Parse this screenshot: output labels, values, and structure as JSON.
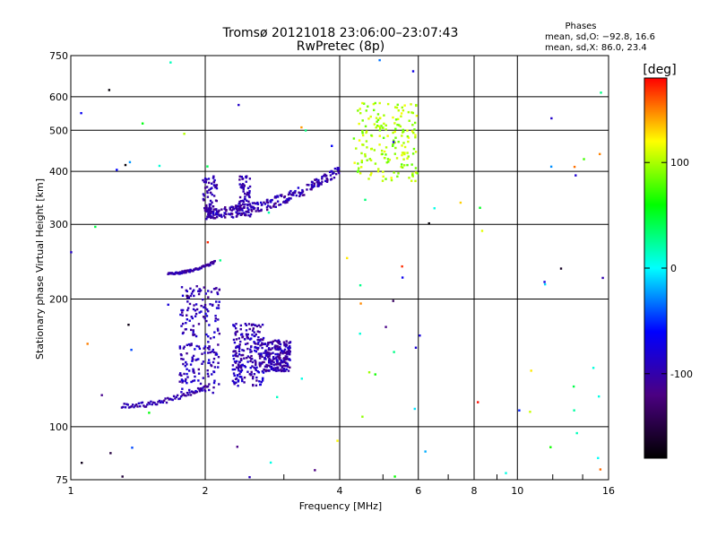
{
  "chart_data": {
    "type": "scatter",
    "title": "Tromsø 20121018 23:06:00–23:07:43",
    "subtitle": "RwPretec (8p)",
    "xlabel": "Frequency [MHz]",
    "ylabel": "Stationary phase Virtual Height [km]",
    "x_scale": "log",
    "y_scale": "log",
    "xlim": [
      1,
      16
    ],
    "ylim": [
      75,
      750
    ],
    "x_ticks": [
      1,
      2,
      4,
      6,
      8,
      10,
      16
    ],
    "y_ticks": [
      75,
      100,
      200,
      300,
      400,
      500,
      600,
      750
    ],
    "grid": true,
    "phases_box": {
      "title": "Phases",
      "line_o": "mean, sd,O: −92.8, 16.6",
      "line_x": "mean, sd,X:  86.0, 23.4"
    },
    "colorbar": {
      "label": "[deg]",
      "range": [
        -180,
        180
      ],
      "ticks": [
        100,
        0,
        -100
      ],
      "colors": [
        "#000000",
        "#4b0082",
        "#0000ff",
        "#00ffff",
        "#00ff00",
        "#ffff00",
        "#ff0000"
      ]
    },
    "traces": [
      {
        "name": "",
        "phase": -100,
        "x_range": [
          1.3,
          2.0
        ],
        "y_range": [
          112,
          124
        ],
        "kind": "line"
      },
      {
        "name": "",
        "phase": -100,
        "x_range": [
          1.65,
          2.1
        ],
        "y_range": [
          230,
          245
        ],
        "kind": "line"
      },
      {
        "name": "",
        "phase": -100,
        "x_range": [
          2.0,
          4.0
        ],
        "y_range": [
          315,
          400
        ],
        "kind": "curve"
      },
      {
        "name": "",
        "phase": -95,
        "x_range": [
          1.75,
          2.15
        ],
        "y_range": [
          120,
          215
        ],
        "kind": "cloud"
      },
      {
        "name": "",
        "phase": -95,
        "x_range": [
          2.3,
          2.7
        ],
        "y_range": [
          125,
          175
        ],
        "kind": "cloud"
      },
      {
        "name": "",
        "phase": -100,
        "x_range": [
          2.7,
          3.1
        ],
        "y_range": [
          135,
          160
        ],
        "kind": "cloud"
      },
      {
        "name": "",
        "phase": 100,
        "x_range": [
          4.3,
          6.0
        ],
        "y_range": [
          380,
          580
        ],
        "kind": "cloud"
      }
    ]
  }
}
